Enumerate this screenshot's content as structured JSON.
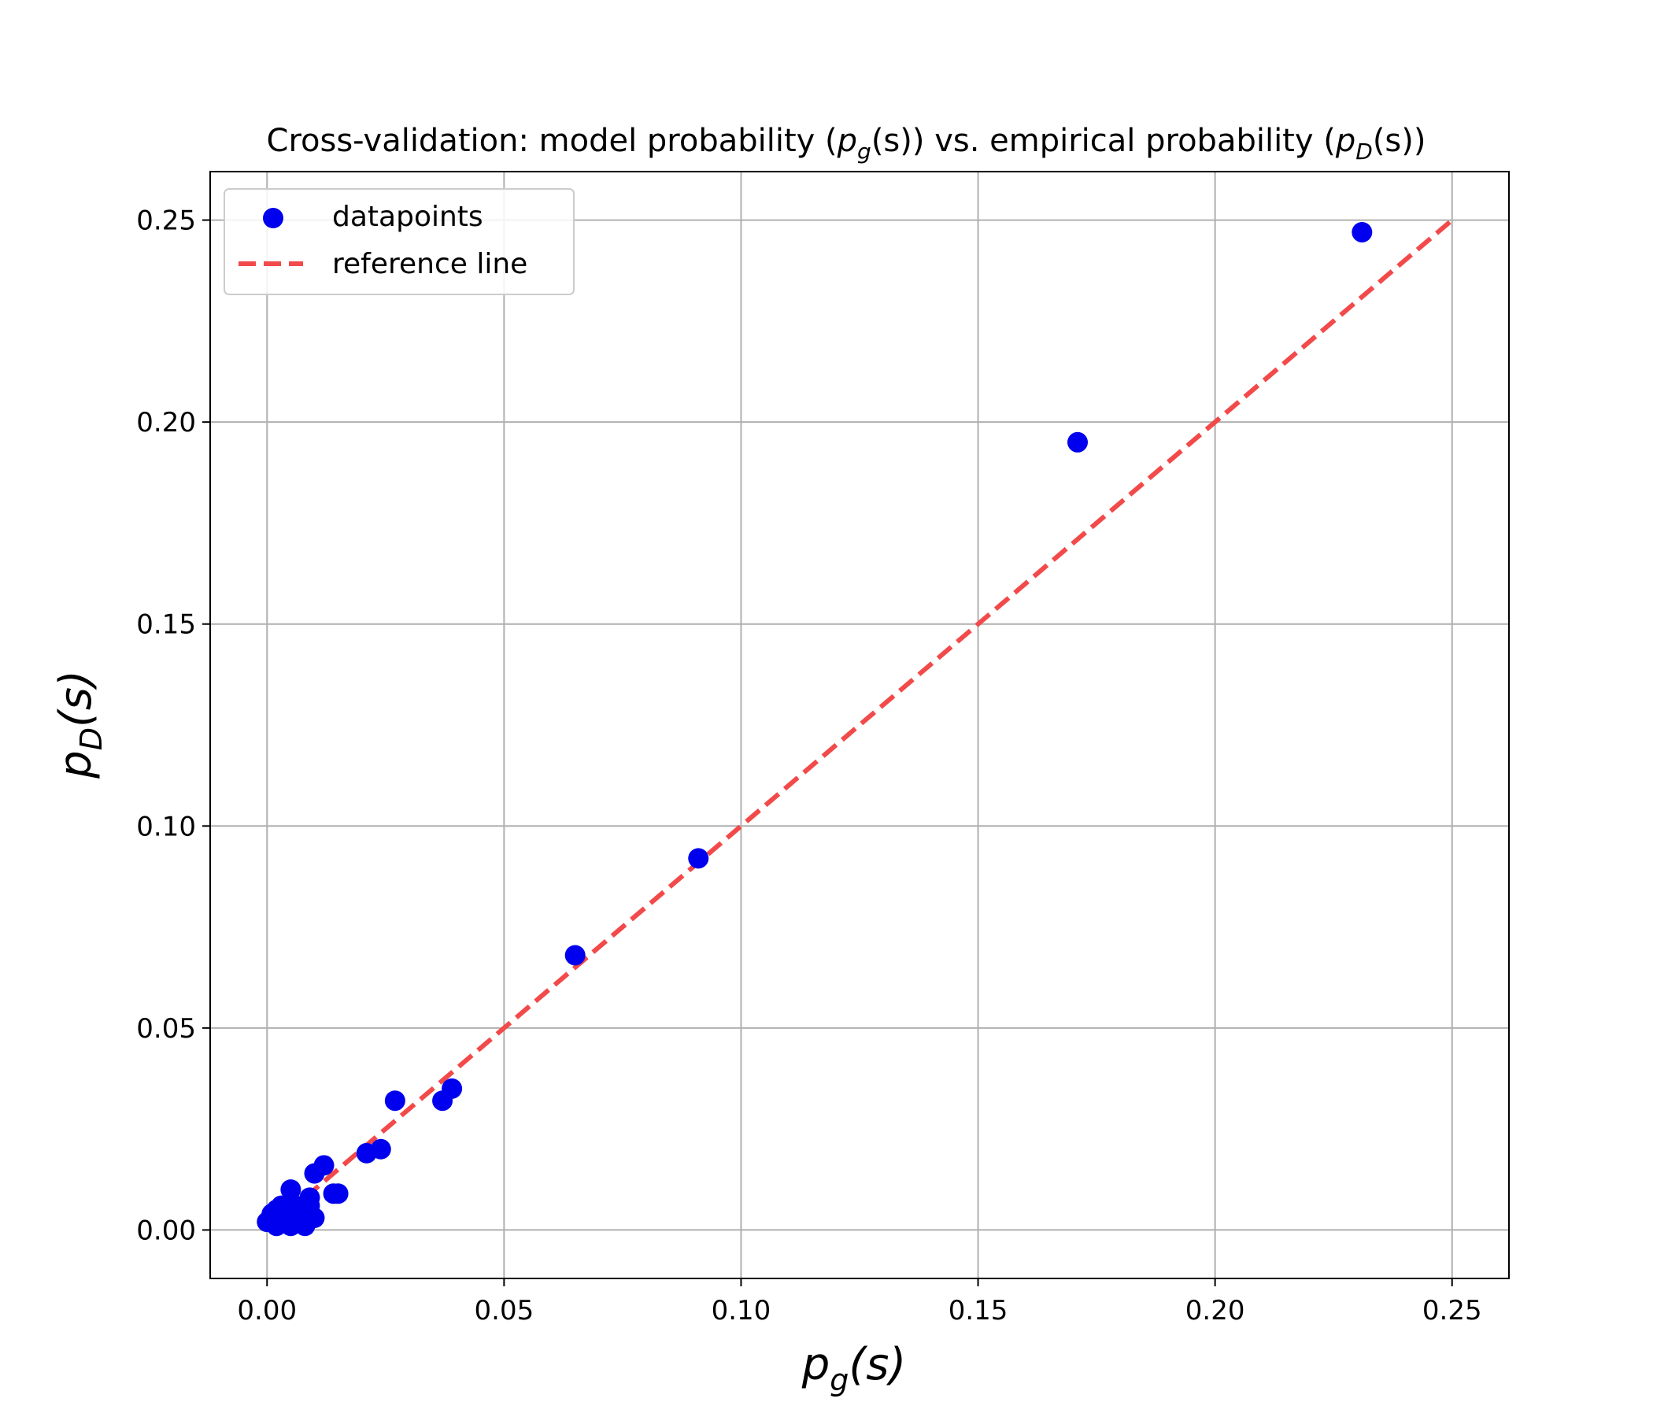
{
  "chart_data": {
    "type": "scatter",
    "title": "Cross-validation: model probability (p_g(s)) vs. empirical probability (p_D(s))",
    "title_parts": {
      "prefix": "Cross-validation: model probability (",
      "model_symbol": "p",
      "model_subscript": "g",
      "middle": ") vs. empirical probability (",
      "emp_symbol": "p",
      "emp_subscript": "D",
      "arg": "(s)",
      "suffix": ")"
    },
    "xlabel": {
      "symbol": "p",
      "subscript": "g",
      "arg": "(s)"
    },
    "ylabel": {
      "symbol": "p",
      "subscript": "D",
      "arg": "(s)"
    },
    "xlim": [
      -0.012,
      0.262
    ],
    "ylim": [
      -0.012,
      0.262
    ],
    "xticks": [
      0.0,
      0.05,
      0.1,
      0.15,
      0.2,
      0.25
    ],
    "yticks": [
      0.0,
      0.05,
      0.1,
      0.15,
      0.2,
      0.25
    ],
    "xtick_labels": [
      "0.00",
      "0.05",
      "0.10",
      "0.15",
      "0.20",
      "0.25"
    ],
    "ytick_labels": [
      "0.00",
      "0.05",
      "0.10",
      "0.15",
      "0.20",
      "0.25"
    ],
    "grid": true,
    "legend_position": "top-left",
    "series": [
      {
        "name": "datapoints",
        "kind": "scatter",
        "color": "#0000ee",
        "points": [
          [
            0.0,
            0.002
          ],
          [
            0.001,
            0.004
          ],
          [
            0.002,
            0.001
          ],
          [
            0.002,
            0.005
          ],
          [
            0.003,
            0.003
          ],
          [
            0.003,
            0.006
          ],
          [
            0.004,
            0.002
          ],
          [
            0.004,
            0.004
          ],
          [
            0.005,
            0.001
          ],
          [
            0.005,
            0.01
          ],
          [
            0.006,
            0.003
          ],
          [
            0.006,
            0.006
          ],
          [
            0.007,
            0.002
          ],
          [
            0.007,
            0.004
          ],
          [
            0.008,
            0.001
          ],
          [
            0.008,
            0.005
          ],
          [
            0.009,
            0.008
          ],
          [
            0.009,
            0.006
          ],
          [
            0.01,
            0.003
          ],
          [
            0.01,
            0.014
          ],
          [
            0.012,
            0.016
          ],
          [
            0.014,
            0.009
          ],
          [
            0.015,
            0.009
          ],
          [
            0.021,
            0.019
          ],
          [
            0.024,
            0.02
          ],
          [
            0.027,
            0.032
          ],
          [
            0.037,
            0.032
          ],
          [
            0.039,
            0.035
          ],
          [
            0.065,
            0.068
          ],
          [
            0.091,
            0.092
          ],
          [
            0.171,
            0.195
          ],
          [
            0.231,
            0.247
          ]
        ]
      },
      {
        "name": "reference line",
        "kind": "line",
        "style": "dashed",
        "color": "#f24a4a",
        "points": [
          [
            0.0,
            0.0
          ],
          [
            0.25,
            0.25
          ]
        ]
      }
    ]
  }
}
